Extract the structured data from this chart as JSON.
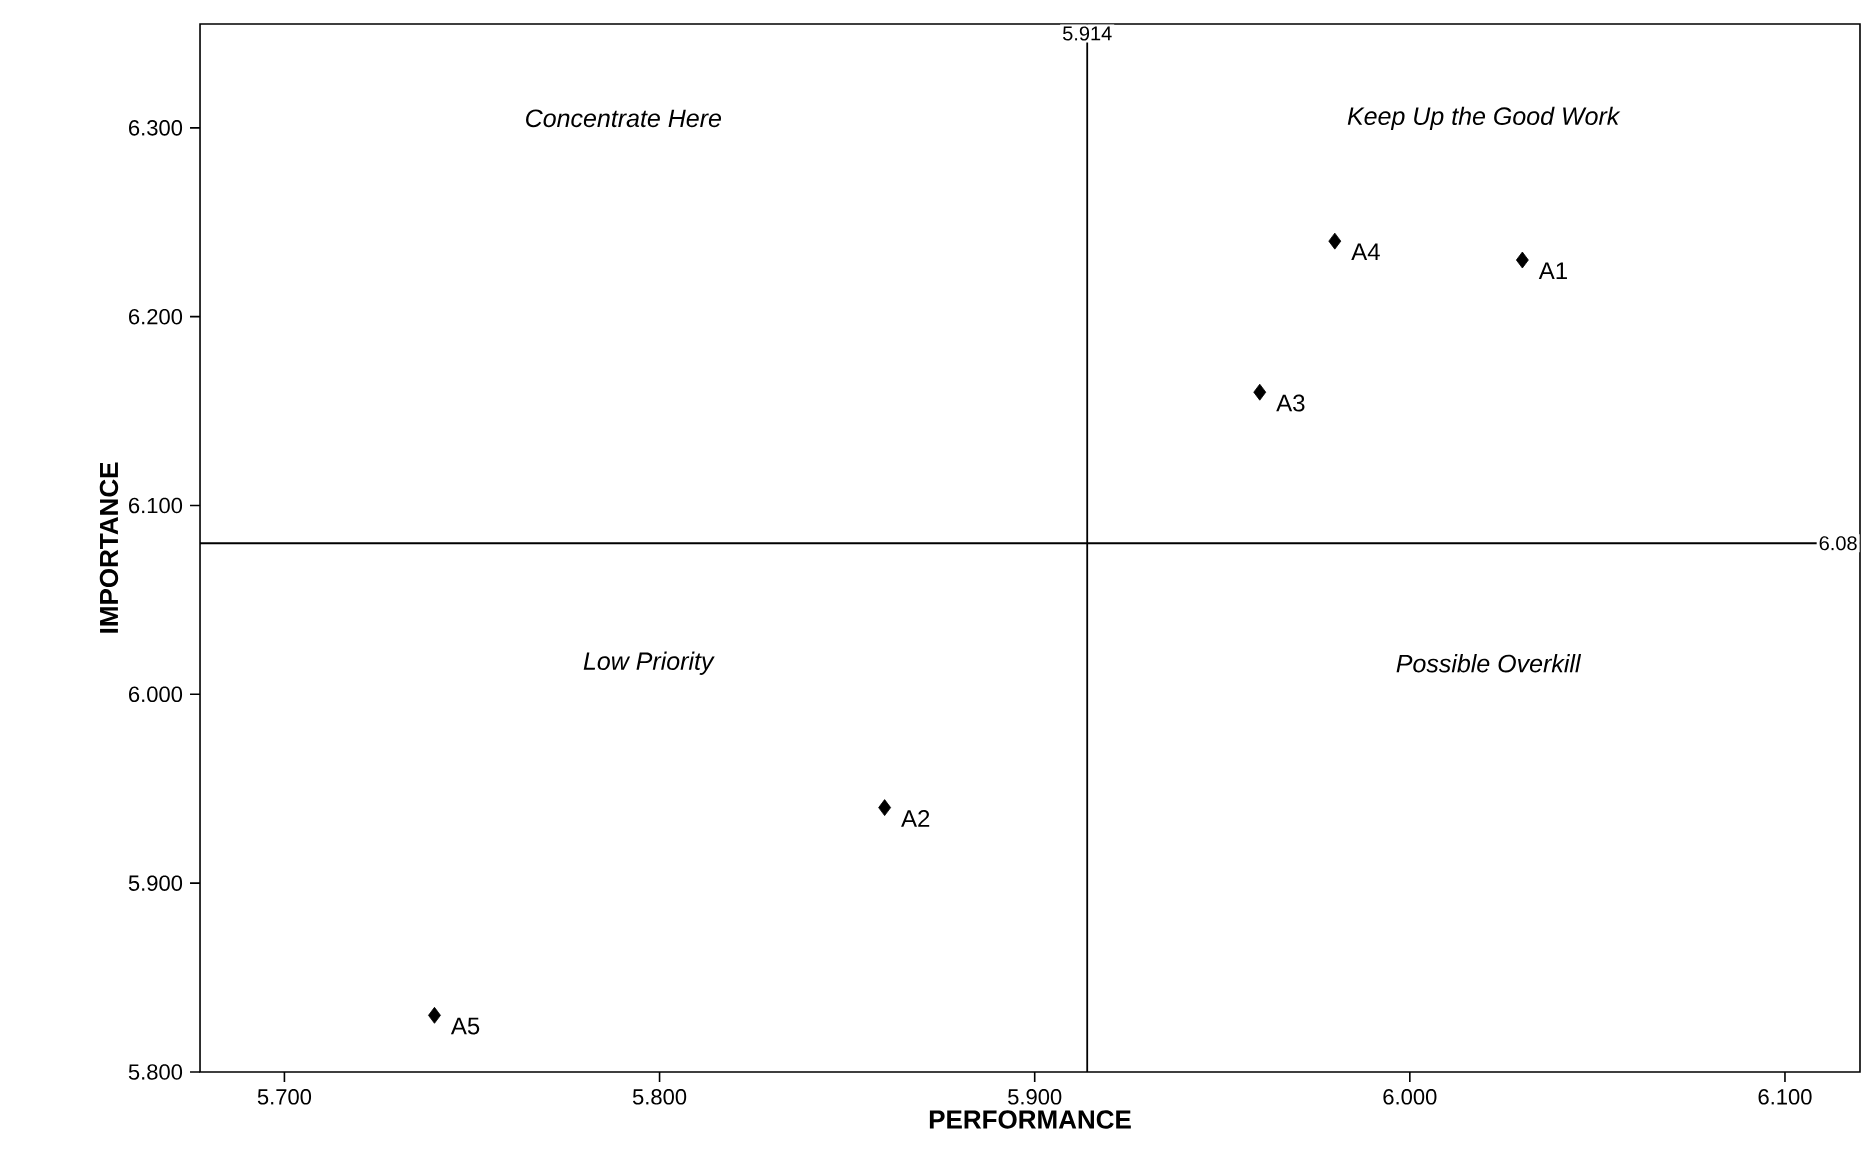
{
  "chart_data": {
    "type": "scatter",
    "xlabel": "PERFORMANCE",
    "ylabel": "IMPORTANCE",
    "x": [
      6.03,
      5.86,
      5.96,
      5.98,
      5.74
    ],
    "values": [
      6.23,
      5.94,
      6.16,
      6.24,
      5.83
    ],
    "color": "#000000",
    "marker": "diamond",
    "xlim": [
      5.6775,
      6.12
    ],
    "ylim": [
      5.8,
      6.355
    ],
    "xticks": [
      {
        "value": 5.7,
        "label": "5.700"
      },
      {
        "value": 5.8,
        "label": "5.800"
      },
      {
        "value": 5.9,
        "label": "5.900"
      },
      {
        "value": 6.0,
        "label": "6.000"
      },
      {
        "value": 6.1,
        "label": "6.100"
      }
    ],
    "yticks": [
      {
        "value": 5.8,
        "label": "5.800"
      },
      {
        "value": 5.9,
        "label": "5.900"
      },
      {
        "value": 6.0,
        "label": "6.000"
      },
      {
        "value": 6.1,
        "label": "6.100"
      },
      {
        "value": 6.2,
        "label": "6.200"
      },
      {
        "value": 6.3,
        "label": "6.300"
      }
    ],
    "ref_lines": [
      {
        "axis": "x",
        "value": 5.914,
        "label": "5.914"
      },
      {
        "axis": "y",
        "value": 6.08,
        "label": "6.08"
      }
    ],
    "annotations": [
      "Concentrate Here",
      "Keep Up the Good Work",
      "Low Priority",
      "Possible Overkill",
      {
        "text": "A1",
        "x": 6.03,
        "y": 6.23
      },
      {
        "text": "A2",
        "x": 5.86,
        "y": 5.94
      },
      {
        "text": "A3",
        "x": 5.96,
        "y": 6.16
      },
      {
        "text": "A4",
        "x": 5.98,
        "y": 6.24
      },
      {
        "text": "A5",
        "x": 5.74,
        "y": 5.83
      }
    ]
  }
}
